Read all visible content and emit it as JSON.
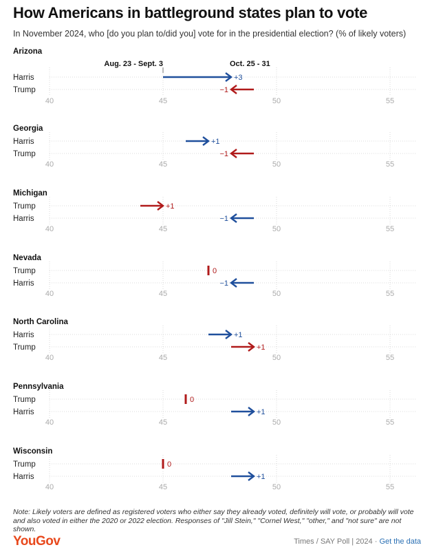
{
  "header": {
    "title": "How Americans in battleground states plan to vote",
    "subtitle": "In November 2024, who [do you plan to/did you] vote for in the presidential election? (% of likely voters)"
  },
  "colors": {
    "harris": "#1f4f9c",
    "trump": "#b01a1a",
    "grid": "#cfcfcf",
    "tick": "#aaaaaa"
  },
  "chart_data": {
    "type": "arrow-dot",
    "period_labels": [
      "Aug. 23 - Sept. 3",
      "Oct. 25 - 31"
    ],
    "x_ticks": [
      40,
      45,
      50,
      55
    ],
    "xlim": [
      38.5,
      56.5
    ],
    "states": [
      {
        "name": "Arizona",
        "rows": [
          {
            "candidate": "Harris",
            "from": 45,
            "to": 48,
            "change": "+3"
          },
          {
            "candidate": "Trump",
            "from": 49,
            "to": 48,
            "change": "−1"
          }
        ]
      },
      {
        "name": "Georgia",
        "rows": [
          {
            "candidate": "Harris",
            "from": 46,
            "to": 47,
            "change": "+1"
          },
          {
            "candidate": "Trump",
            "from": 49,
            "to": 48,
            "change": "−1"
          }
        ]
      },
      {
        "name": "Michigan",
        "rows": [
          {
            "candidate": "Trump",
            "from": 44,
            "to": 45,
            "change": "+1"
          },
          {
            "candidate": "Harris",
            "from": 49,
            "to": 48,
            "change": "−1"
          }
        ]
      },
      {
        "name": "Nevada",
        "rows": [
          {
            "candidate": "Trump",
            "from": 47,
            "to": 47,
            "change": "0"
          },
          {
            "candidate": "Harris",
            "from": 49,
            "to": 48,
            "change": "−1"
          }
        ]
      },
      {
        "name": "North Carolina",
        "rows": [
          {
            "candidate": "Harris",
            "from": 47,
            "to": 48,
            "change": "+1"
          },
          {
            "candidate": "Trump",
            "from": 48,
            "to": 49,
            "change": "+1"
          }
        ]
      },
      {
        "name": "Pennsylvania",
        "rows": [
          {
            "candidate": "Trump",
            "from": 46,
            "to": 46,
            "change": "0"
          },
          {
            "candidate": "Harris",
            "from": 48,
            "to": 49,
            "change": "+1"
          }
        ]
      },
      {
        "name": "Wisconsin",
        "rows": [
          {
            "candidate": "Trump",
            "from": 45,
            "to": 45,
            "change": "0"
          },
          {
            "candidate": "Harris",
            "from": 48,
            "to": 49,
            "change": "+1"
          }
        ]
      }
    ]
  },
  "footer": {
    "note": "Note: Likely voters are defined as registered voters who either say they already voted, definitely will vote, or probably will vote and also voted in either the 2020 or 2022 election. Responses of \"Jill Stein,\" \"Cornel West,\" \"other,\" and \"not sure\" are not shown.",
    "logo": "YouGov",
    "source": "Times / SAY Poll | 2024 · ",
    "link": "Get the data"
  }
}
